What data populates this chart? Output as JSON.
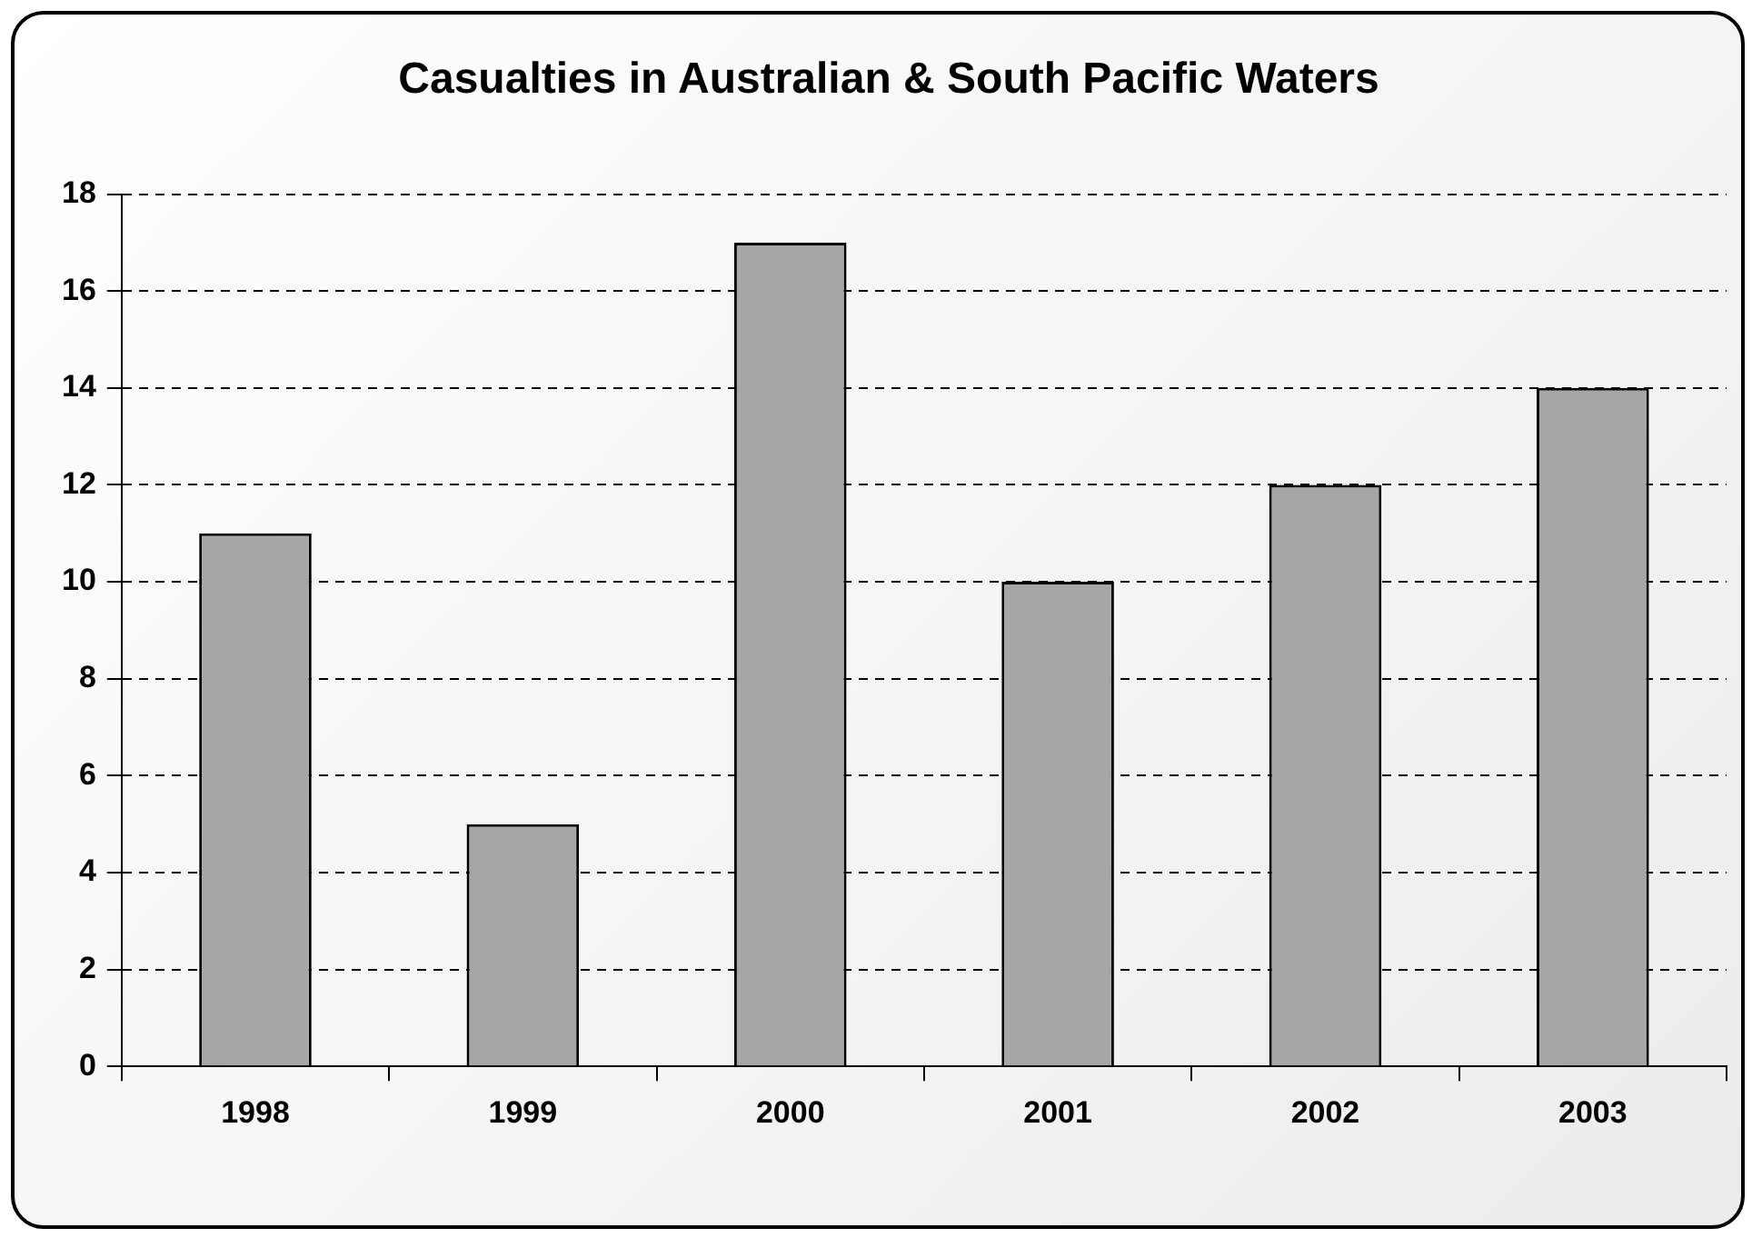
{
  "chart_data": {
    "type": "bar",
    "title": "Casualties in Australian & South Pacific Waters",
    "categories": [
      "1998",
      "1999",
      "2000",
      "2001",
      "2002",
      "2003"
    ],
    "values": [
      11,
      5,
      17,
      10,
      12,
      14
    ],
    "color": "#a6a6a6",
    "ylim": [
      0,
      18
    ],
    "yticks": [
      0,
      2,
      4,
      6,
      8,
      10,
      12,
      14,
      16,
      18
    ],
    "grid": "y",
    "legend": false
  }
}
